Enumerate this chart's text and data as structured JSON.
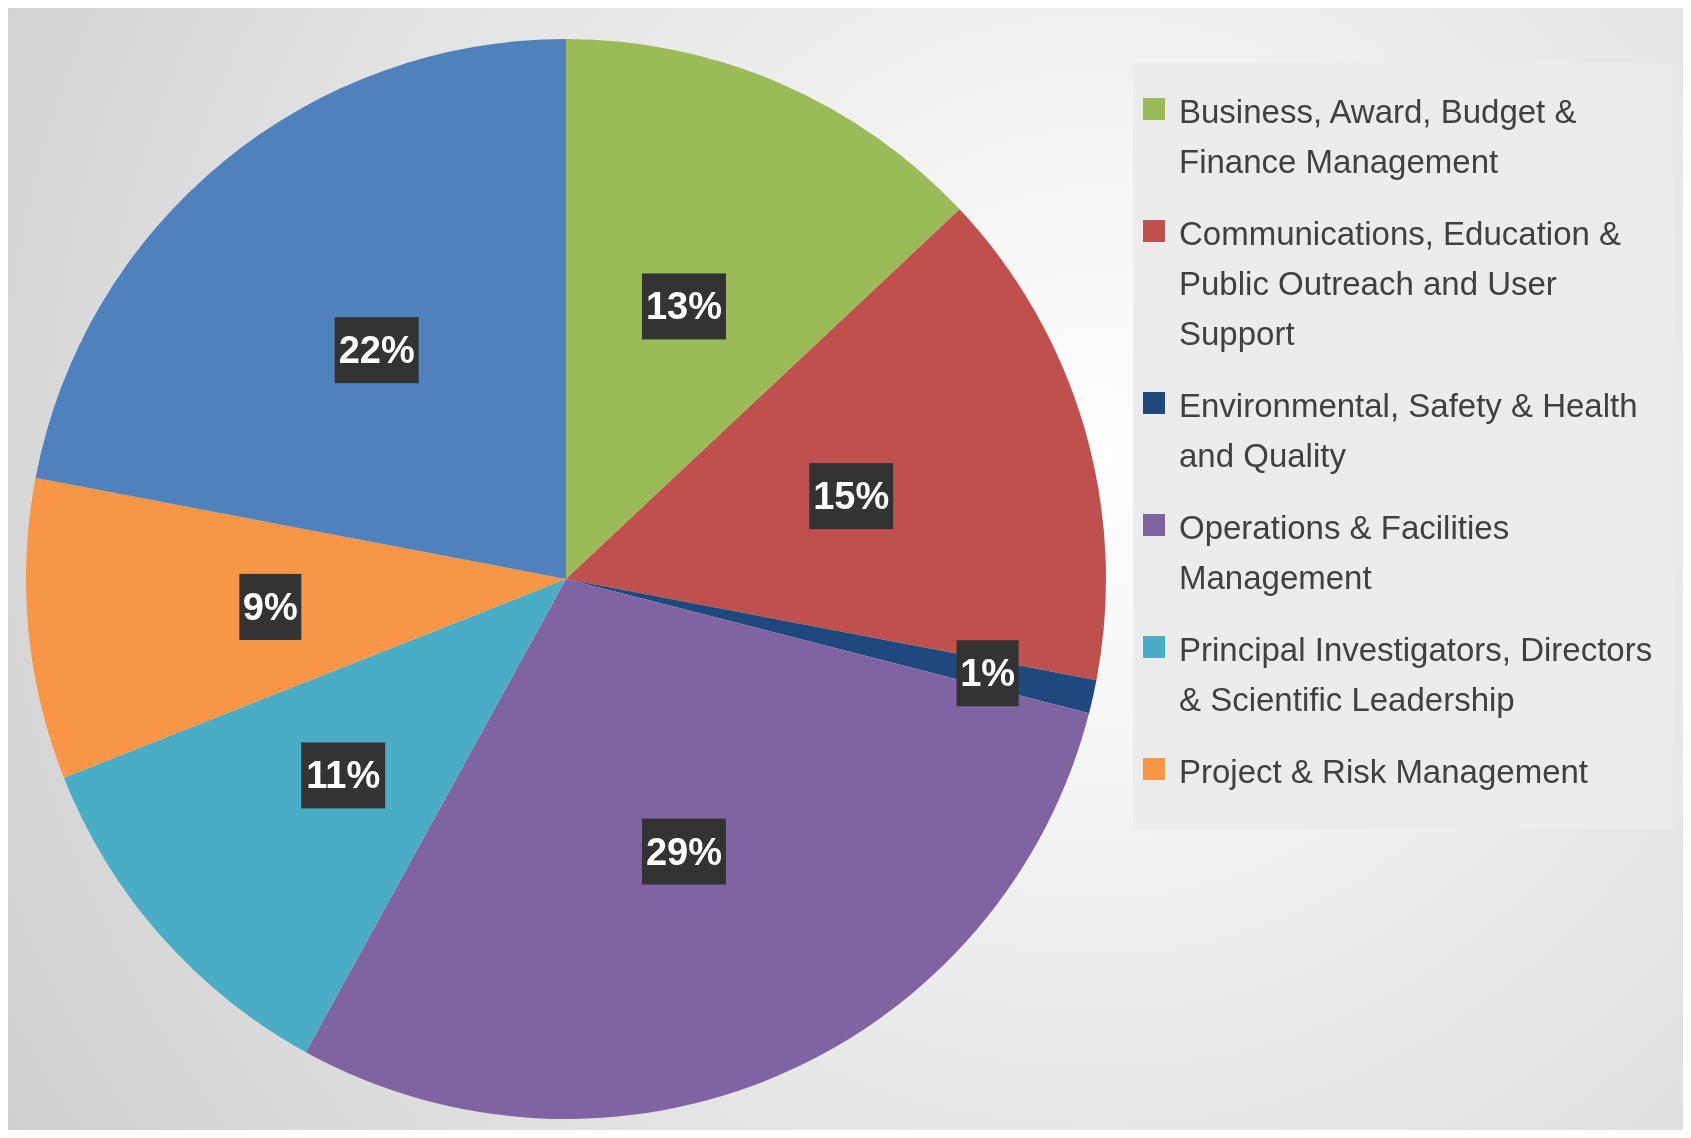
{
  "chart_data": {
    "type": "pie",
    "categories": [
      "Business, Award, Budget & Finance Management",
      "Communications, Education & Public Outreach and User Support",
      "Environmental, Safety & Health and Quality",
      "Operations & Facilities Management",
      "Principal Investigators, Directors & Scientific Leadership",
      "Project & Risk Management",
      null
    ],
    "values": [
      13,
      15,
      1,
      29,
      11,
      9,
      22
    ],
    "colors": [
      "#9bbb59",
      "#c0504d",
      "#1f497d",
      "#8064a2",
      "#4bacc6",
      "#f79646",
      "#4f81bd"
    ],
    "value_labels": [
      "13%",
      "15%",
      "1%",
      "29%",
      "11%",
      "9%",
      "22%"
    ],
    "legend": "right"
  }
}
